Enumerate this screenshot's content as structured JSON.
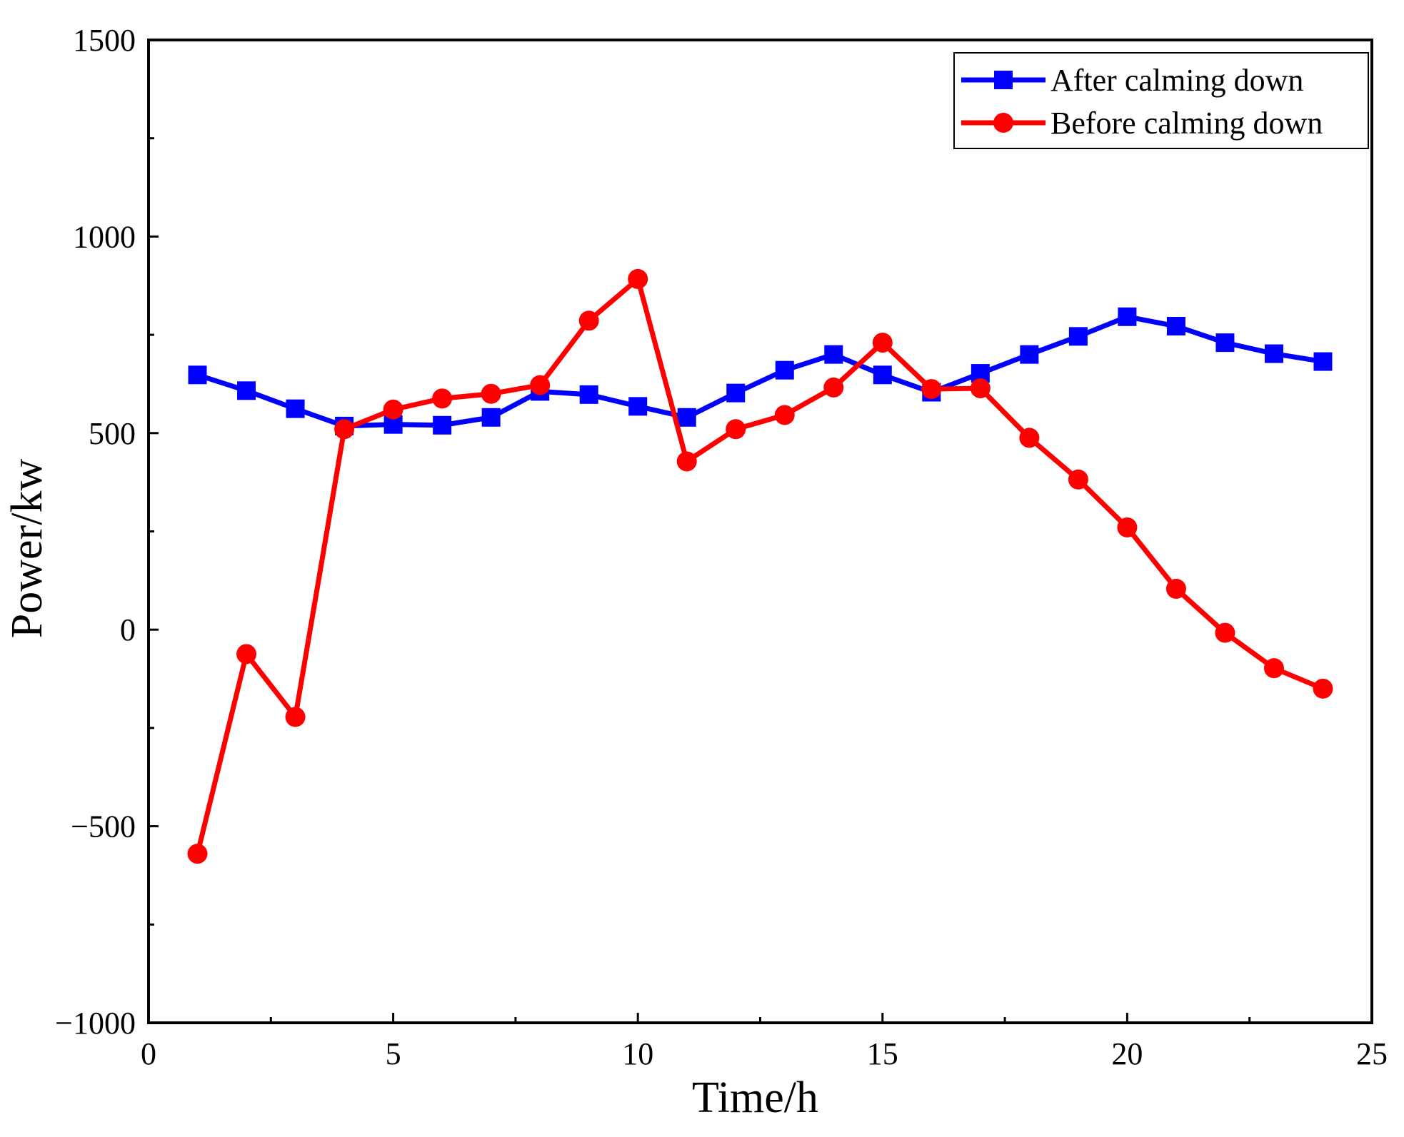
{
  "chart_data": {
    "type": "line",
    "title": "",
    "xlabel": "Time/h",
    "ylabel": "Power/kw",
    "xlim": [
      0,
      25
    ],
    "ylim": [
      -1000,
      1500
    ],
    "xticks": [
      0,
      5,
      10,
      15,
      20,
      25
    ],
    "yticks": [
      -1000,
      -500,
      0,
      500,
      1000,
      1500
    ],
    "xtick_labels": [
      "0",
      "5",
      "10",
      "15",
      "20",
      "25"
    ],
    "ytick_labels": [
      "−1000",
      "−500",
      "0",
      "500",
      "1000",
      "1500"
    ],
    "grid": false,
    "legend_position": "top-right",
    "x": [
      1,
      2,
      3,
      4,
      5,
      6,
      7,
      8,
      9,
      10,
      11,
      12,
      13,
      14,
      15,
      16,
      17,
      18,
      19,
      20,
      21,
      22,
      23,
      24
    ],
    "series": [
      {
        "name": "After calming down",
        "color": "#0000ff",
        "marker": "square",
        "values": [
          648,
          608,
          562,
          518,
          522,
          520,
          540,
          606,
          598,
          568,
          540,
          602,
          660,
          700,
          648,
          604,
          652,
          700,
          746,
          796,
          772,
          730,
          702,
          682
        ]
      },
      {
        "name": "Before calming down",
        "color": "#ff0000",
        "marker": "circle",
        "values": [
          -570,
          -62,
          -222,
          510,
          560,
          588,
          600,
          622,
          786,
          892,
          428,
          510,
          546,
          616,
          730,
          612,
          614,
          488,
          382,
          260,
          104,
          -8,
          -98,
          -150
        ]
      }
    ]
  }
}
